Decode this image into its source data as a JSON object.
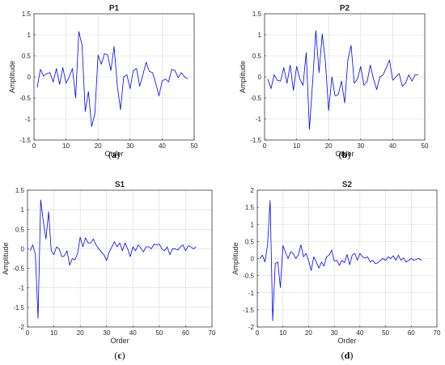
{
  "colors": {
    "line": "#0000ff",
    "grid": "#d9d9d9",
    "axis": "#262626"
  },
  "chart_data": [
    {
      "type": "line",
      "title": "P1",
      "xlabel": "Order",
      "ylabel": "Amplitude",
      "caption": {
        "letter": "a",
        "open": "(",
        "close": ")"
      },
      "xlim": [
        0,
        50
      ],
      "ylim": [
        -1.5,
        1.5
      ],
      "xticks": [
        0,
        10,
        20,
        30,
        40,
        50
      ],
      "yticks": [
        -1.5,
        -1,
        -0.5,
        0,
        0.5,
        1,
        1.5
      ],
      "grid": true,
      "series": [
        {
          "values": [
            -0.25,
            0.18,
            0.02,
            0.08,
            0.1,
            -0.12,
            0.2,
            -0.18,
            0.22,
            -0.15,
            0.0,
            0.2,
            -0.5,
            1.08,
            0.75,
            -0.82,
            -0.35,
            -1.18,
            -0.88,
            0.52,
            0.3,
            0.55,
            0.52,
            0.15,
            0.72,
            -0.2,
            -0.78,
            0.0,
            0.05,
            -0.28,
            0.15,
            0.2,
            -0.22,
            0.05,
            0.35,
            0.13,
            0.1,
            -0.15,
            -0.45,
            -0.1,
            -0.05,
            -0.12,
            0.18,
            0.15,
            -0.02,
            0.1,
            0.0,
            -0.05
          ]
        }
      ]
    },
    {
      "type": "line",
      "title": "P2",
      "xlabel": "Order",
      "ylabel": "Amplitude",
      "caption": {
        "letter": "b",
        "open": "(",
        "close": ")"
      },
      "xlim": [
        0,
        50
      ],
      "ylim": [
        -1.5,
        1.5
      ],
      "xticks": [
        0,
        10,
        20,
        30,
        40,
        50
      ],
      "yticks": [
        -1.5,
        -1,
        -0.5,
        0,
        0.5,
        1,
        1.5
      ],
      "grid": true,
      "series": [
        {
          "values": [
            -0.05,
            -0.28,
            0.05,
            -0.08,
            -0.1,
            0.22,
            -0.15,
            0.28,
            -0.32,
            0.25,
            -0.05,
            -0.2,
            0.58,
            -1.25,
            -0.12,
            1.1,
            0.1,
            1.02,
            0.35,
            -0.8,
            0.0,
            -0.45,
            -0.42,
            -0.1,
            -0.62,
            0.4,
            0.75,
            -0.15,
            -0.05,
            0.25,
            -0.2,
            -0.12,
            0.28,
            -0.05,
            -0.3,
            0.0,
            0.05,
            0.22,
            0.4,
            -0.08,
            0.0,
            0.08,
            -0.22,
            -0.15,
            0.05,
            -0.1,
            0.05,
            0.05
          ]
        }
      ]
    },
    {
      "type": "line",
      "title": "S1",
      "xlabel": "Order",
      "ylabel": "Amplitude",
      "caption": {
        "letter": "c",
        "open": "(",
        "close": ")"
      },
      "xlim": [
        0,
        70
      ],
      "ylim": [
        -2,
        1.5
      ],
      "xticks": [
        0,
        10,
        20,
        30,
        40,
        50,
        60,
        70
      ],
      "yticks": [
        -2,
        -1.5,
        -1,
        -0.5,
        0,
        0.5,
        1,
        1.5
      ],
      "grid": true,
      "series": [
        {
          "values": [
            -0.05,
            0.1,
            -0.15,
            -1.78,
            1.25,
            0.7,
            0.25,
            0.95,
            -0.05,
            -0.15,
            0.05,
            0.0,
            -0.2,
            -0.18,
            -0.05,
            -0.42,
            -0.25,
            -0.28,
            -0.12,
            0.3,
            0.05,
            0.28,
            0.15,
            0.15,
            0.25,
            0.1,
            0.0,
            -0.08,
            -0.15,
            -0.3,
            -0.08,
            0.05,
            0.18,
            0.05,
            0.15,
            -0.05,
            0.15,
            0.0,
            -0.2,
            0.05,
            -0.05,
            0.1,
            0.02,
            -0.08,
            0.05,
            0.05,
            0.0,
            0.12,
            0.1,
            0.12,
            0.0,
            -0.05,
            0.05,
            -0.15,
            0.0,
            0.0,
            -0.03,
            0.05,
            0.1,
            -0.05,
            0.08,
            0.05,
            0.0,
            0.05
          ]
        }
      ]
    },
    {
      "type": "line",
      "title": "S2",
      "xlabel": "Order",
      "ylabel": "Amplitude",
      "caption": {
        "letter": "d",
        "open": "(",
        "close": ")"
      },
      "xlim": [
        0,
        70
      ],
      "ylim": [
        -2,
        2
      ],
      "xticks": [
        0,
        10,
        20,
        30,
        40,
        50,
        60,
        70
      ],
      "yticks": [
        -2,
        -1.5,
        -1,
        -0.5,
        0,
        0.5,
        1,
        1.5,
        2
      ],
      "grid": true,
      "series": [
        {
          "values": [
            0.0,
            0.1,
            -0.1,
            0.4,
            1.7,
            -1.82,
            -0.15,
            -0.1,
            -0.85,
            0.38,
            0.18,
            0.0,
            0.2,
            0.15,
            0.0,
            0.1,
            0.4,
            0.05,
            0.15,
            -0.05,
            -0.35,
            0.05,
            -0.1,
            -0.28,
            -0.1,
            -0.22,
            0.05,
            0.1,
            0.25,
            -0.08,
            -0.05,
            -0.2,
            -0.05,
            -0.12,
            0.12,
            -0.18,
            0.1,
            0.15,
            -0.05,
            0.15,
            0.05,
            0.02,
            0.05,
            -0.1,
            -0.05,
            -0.15,
            -0.12,
            -0.05,
            0.0,
            -0.05,
            0.05,
            0.0,
            0.08,
            -0.05,
            0.1,
            -0.05,
            0.02,
            -0.1,
            -0.05,
            0.0,
            -0.05,
            -0.02,
            0.0,
            -0.05
          ]
        }
      ]
    }
  ]
}
